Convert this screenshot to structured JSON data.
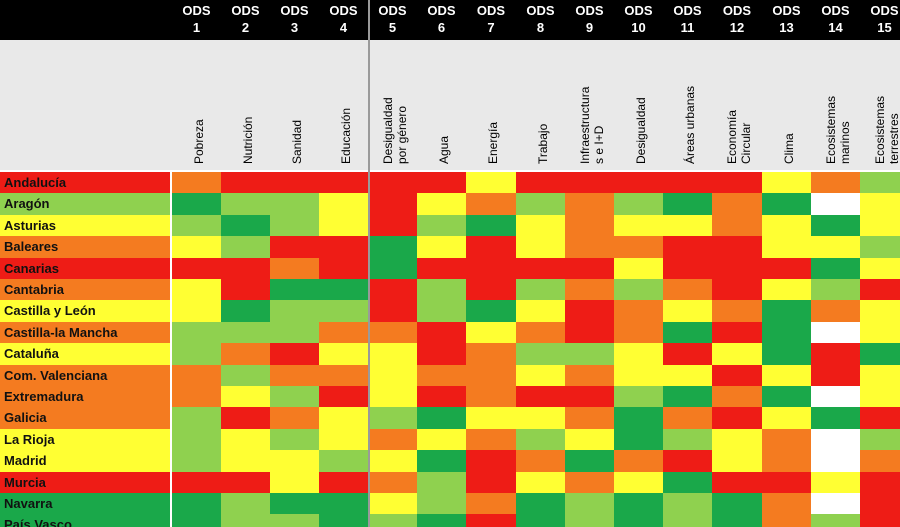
{
  "chart_data": {
    "type": "heatmap",
    "title": "",
    "columns": [
      {
        "ods": "ODS",
        "num": "1",
        "label": "Pobreza"
      },
      {
        "ods": "ODS",
        "num": "2",
        "label": "Nutrición"
      },
      {
        "ods": "ODS",
        "num": "3",
        "label": "Sanidad"
      },
      {
        "ods": "ODS",
        "num": "4",
        "label": "Educación"
      },
      {
        "ods": "ODS",
        "num": "5",
        "label": "Desigualdad\npor género"
      },
      {
        "ods": "ODS",
        "num": "6",
        "label": "Agua"
      },
      {
        "ods": "ODS",
        "num": "7",
        "label": "Energía"
      },
      {
        "ods": "ODS",
        "num": "8",
        "label": "Trabajo"
      },
      {
        "ods": "ODS",
        "num": "9",
        "label": "Infraestructura\ns e I+D"
      },
      {
        "ods": "ODS",
        "num": "10",
        "label": "Desigualdad"
      },
      {
        "ods": "ODS",
        "num": "11",
        "label": "Áreas urbanas"
      },
      {
        "ods": "ODS",
        "num": "12",
        "label": "Economía\nCircular"
      },
      {
        "ods": "ODS",
        "num": "13",
        "label": "Clima"
      },
      {
        "ods": "ODS",
        "num": "14",
        "label": "Ecosistemas\nmarinos"
      },
      {
        "ods": "ODS",
        "num": "15",
        "label": "Ecosistemas\nterrestres"
      }
    ],
    "levels": {
      "R": "#ee1c16",
      "O": "#f47b20",
      "Y": "#ffff33",
      "L": "#8fd14f",
      "G": "#1aa84a",
      "W": "#ffffff"
    },
    "rows": [
      {
        "name": "Andalucía",
        "rowcolor": "#ee1c16",
        "cells": [
          "O",
          "R",
          "R",
          "R",
          "R",
          "R",
          "Y",
          "R",
          "R",
          "R",
          "R",
          "R",
          "Y",
          "O",
          "L"
        ]
      },
      {
        "name": "Aragón",
        "rowcolor": "#8fd14f",
        "cells": [
          "G",
          "L",
          "L",
          "Y",
          "R",
          "Y",
          "O",
          "L",
          "O",
          "L",
          "G",
          "O",
          "G",
          "W",
          "Y"
        ]
      },
      {
        "name": "Asturias",
        "rowcolor": "#ffff33",
        "cells": [
          "L",
          "G",
          "L",
          "Y",
          "R",
          "L",
          "G",
          "Y",
          "O",
          "Y",
          "Y",
          "O",
          "Y",
          "G",
          "Y"
        ]
      },
      {
        "name": "Baleares",
        "rowcolor": "#f47b20",
        "cells": [
          "Y",
          "L",
          "R",
          "R",
          "G",
          "Y",
          "R",
          "Y",
          "O",
          "O",
          "R",
          "R",
          "Y",
          "Y",
          "L"
        ]
      },
      {
        "name": "Canarias",
        "rowcolor": "#ee1c16",
        "cells": [
          "R",
          "R",
          "O",
          "R",
          "G",
          "R",
          "R",
          "R",
          "R",
          "Y",
          "R",
          "R",
          "R",
          "G",
          "Y"
        ]
      },
      {
        "name": "Cantabria",
        "rowcolor": "#f47b20",
        "cells": [
          "Y",
          "R",
          "G",
          "G",
          "R",
          "L",
          "R",
          "L",
          "O",
          "L",
          "O",
          "R",
          "Y",
          "L",
          "R"
        ]
      },
      {
        "name": "Castilla y León",
        "rowcolor": "#ffff33",
        "cells": [
          "Y",
          "G",
          "L",
          "L",
          "R",
          "L",
          "G",
          "Y",
          "R",
          "O",
          "Y",
          "O",
          "G",
          "O",
          "Y"
        ]
      },
      {
        "name": "Castilla-la Mancha",
        "rowcolor": "#f47b20",
        "cells": [
          "L",
          "L",
          "L",
          "O",
          "O",
          "R",
          "Y",
          "O",
          "R",
          "O",
          "G",
          "R",
          "G",
          "W",
          "Y"
        ]
      },
      {
        "name": "Cataluña",
        "rowcolor": "#ffff33",
        "cells": [
          "L",
          "O",
          "R",
          "Y",
          "Y",
          "R",
          "O",
          "L",
          "L",
          "Y",
          "R",
          "Y",
          "G",
          "R",
          "G"
        ]
      },
      {
        "name": "Com. Valenciana",
        "rowcolor": "#f47b20",
        "cells": [
          "O",
          "L",
          "O",
          "O",
          "Y",
          "O",
          "O",
          "Y",
          "O",
          "Y",
          "Y",
          "R",
          "Y",
          "R",
          "Y"
        ]
      },
      {
        "name": "Extremadura",
        "rowcolor": "#f47b20",
        "cells": [
          "O",
          "Y",
          "L",
          "R",
          "Y",
          "R",
          "O",
          "R",
          "R",
          "L",
          "G",
          "O",
          "G",
          "W",
          "Y"
        ]
      },
      {
        "name": "Galicia",
        "rowcolor": "#f47b20",
        "cells": [
          "L",
          "R",
          "O",
          "Y",
          "L",
          "G",
          "Y",
          "Y",
          "O",
          "G",
          "O",
          "R",
          "Y",
          "G",
          "R"
        ]
      },
      {
        "name": "La Rioja",
        "rowcolor": "#ffff33",
        "cells": [
          "L",
          "Y",
          "L",
          "Y",
          "O",
          "Y",
          "O",
          "L",
          "Y",
          "G",
          "L",
          "Y",
          "O",
          "W",
          "L"
        ]
      },
      {
        "name": "Madrid",
        "rowcolor": "#ffff33",
        "cells": [
          "L",
          "Y",
          "Y",
          "L",
          "Y",
          "G",
          "R",
          "O",
          "G",
          "O",
          "R",
          "Y",
          "O",
          "W",
          "O"
        ]
      },
      {
        "name": "Murcia",
        "rowcolor": "#ee1c16",
        "cells": [
          "R",
          "R",
          "Y",
          "R",
          "O",
          "L",
          "R",
          "Y",
          "O",
          "Y",
          "G",
          "R",
          "R",
          "Y",
          "R"
        ]
      },
      {
        "name": "Navarra",
        "rowcolor": "#1aa84a",
        "cells": [
          "G",
          "L",
          "G",
          "G",
          "Y",
          "L",
          "O",
          "G",
          "L",
          "G",
          "L",
          "G",
          "O",
          "W",
          "R"
        ]
      },
      {
        "name": "País Vasco",
        "rowcolor": "#1aa84a",
        "cells": [
          "G",
          "L",
          "L",
          "G",
          "L",
          "G",
          "R",
          "G",
          "L",
          "G",
          "L",
          "G",
          "O",
          "L",
          "R"
        ]
      }
    ]
  }
}
